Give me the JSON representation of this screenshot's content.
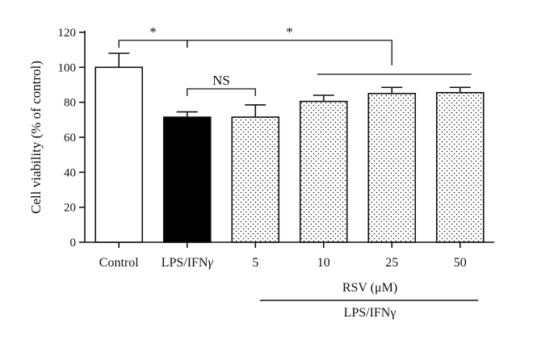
{
  "chart_data": {
    "type": "bar",
    "categories": [
      "Control",
      "LPS/IFNγ",
      "5",
      "10",
      "25",
      "50"
    ],
    "values": [
      100,
      71.5,
      71.5,
      80.5,
      85,
      85.5
    ],
    "errors": [
      8,
      3,
      7,
      3.5,
      3.5,
      3
    ],
    "fills": [
      "white",
      "black",
      "dots",
      "dots",
      "dots",
      "dots"
    ],
    "ylabel": "Cell viability (% of control)",
    "ylim": [
      0,
      120
    ],
    "yticks": [
      0,
      20,
      40,
      60,
      80,
      100,
      120
    ],
    "grid": false,
    "annotations": [
      {
        "label": "*",
        "between": [
          "Control",
          "LPS/IFNγ"
        ]
      },
      {
        "label": "*",
        "between": [
          "LPS/IFNγ",
          "25"
        ]
      },
      {
        "label": "NS",
        "between": [
          "LPS/IFNγ",
          "5"
        ]
      }
    ],
    "group_labels": {
      "rsv": "RSV (μM)",
      "treatment": "LPS/IFNγ"
    }
  }
}
